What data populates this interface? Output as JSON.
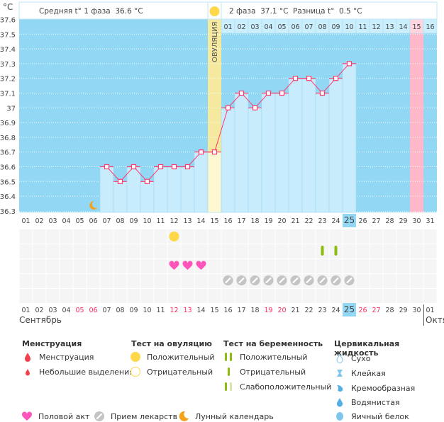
{
  "unit_label": "°C",
  "header": {
    "phase1": "Средняя t° 1 фаза  36.6 °C",
    "phase2": "2 фаза  37.1 °C",
    "diff": "Разница t°  0.5 °C",
    "ovulation_label": "ОВУЛЯЦИЯ"
  },
  "colors": {
    "chart_bg": "#92d8f4",
    "bar": "#c9ecfc",
    "ovulation": "#f5e9a0",
    "ovulation_bar": "#fdf8d2",
    "pink": "#ffb8c9",
    "line": "#ff3a6e",
    "today": "#92d8f4",
    "weekend": "#ff2a5a"
  },
  "chart_data": {
    "type": "line",
    "ylabel": "°C",
    "ylim": [
      36.3,
      37.6
    ],
    "y_ticks": [
      "37.6",
      "37.5",
      "37.4",
      "37.3",
      "37.2",
      "37.1",
      "37",
      "36.9",
      "36.8",
      "36.7",
      "36.6",
      "36.5",
      "36.4",
      "36.3"
    ],
    "days": [
      "01",
      "02",
      "03",
      "04",
      "05",
      "06",
      "07",
      "08",
      "09",
      "10",
      "11",
      "12",
      "13",
      "14",
      "15",
      "16",
      "17",
      "18",
      "19",
      "20",
      "21",
      "22",
      "23",
      "24",
      "25",
      "26",
      "27",
      "28",
      "29",
      "30",
      "31"
    ],
    "cycle_days": [
      "01",
      "02",
      "03",
      "04",
      "05",
      "06",
      "07",
      "08",
      "09",
      "10",
      "11",
      "12",
      "13",
      "14",
      "15",
      "16"
    ],
    "bottom_days": [
      "01",
      "02",
      "03",
      "04",
      "05",
      "06",
      "07",
      "08",
      "09",
      "10",
      "11",
      "12",
      "13",
      "14",
      "15",
      "16",
      "17",
      "18",
      "19",
      "20",
      "21",
      "22",
      "23",
      "24",
      "25",
      "26",
      "27",
      "28",
      "29",
      "30",
      "01"
    ],
    "weekend_bottom_days": [
      "05",
      "06",
      "12",
      "13",
      "19",
      "20",
      "26",
      "27"
    ],
    "temperatures": [
      {
        "day": "07",
        "t": 36.6
      },
      {
        "day": "08",
        "t": 36.5
      },
      {
        "day": "09",
        "t": 36.6
      },
      {
        "day": "10",
        "t": 36.5
      },
      {
        "day": "11",
        "t": 36.6
      },
      {
        "day": "12",
        "t": 36.6
      },
      {
        "day": "13",
        "t": 36.6
      },
      {
        "day": "14",
        "t": 36.7
      },
      {
        "day": "15",
        "t": 36.7
      },
      {
        "day": "16",
        "t": 37.0
      },
      {
        "day": "17",
        "t": 37.1
      },
      {
        "day": "18",
        "t": 37.0
      },
      {
        "day": "19",
        "t": 37.1
      },
      {
        "day": "20",
        "t": 37.1
      },
      {
        "day": "21",
        "t": 37.2
      },
      {
        "day": "22",
        "t": 37.2
      },
      {
        "day": "23",
        "t": 37.1
      },
      {
        "day": "24",
        "t": 37.2
      },
      {
        "day": "25",
        "t": 37.3
      }
    ],
    "ovulation_day": "15",
    "pink_day": "30",
    "today": "25",
    "moon_day": "06",
    "events": {
      "ovulation_test_positive": [
        "12"
      ],
      "pregnancy_test_negative": [
        "23",
        "24"
      ],
      "intercourse": [
        "12",
        "13",
        "14"
      ],
      "medication": [
        "16",
        "17",
        "18",
        "19",
        "20",
        "21",
        "22",
        "23",
        "24",
        "25"
      ]
    }
  },
  "months": {
    "current": "Сентябрь",
    "next": "Октябрь"
  },
  "legend": {
    "menstruation": {
      "title": "Менструация",
      "items": [
        "Менструация",
        "Небольшие выделения"
      ]
    },
    "ovulation_test": {
      "title": "Тест на овуляцию",
      "items": [
        "Положительный",
        "Отрицательный"
      ]
    },
    "pregnancy_test": {
      "title": "Тест на беременность",
      "items": [
        "Положительный",
        "Отрицательный",
        "Слабоположительный"
      ]
    },
    "cervical": {
      "title": "Цервикальная жидкость",
      "items": [
        "Сухо",
        "Клейкая",
        "Кремообразная",
        "Водянистая",
        "Яичный белок"
      ]
    },
    "other": [
      "Половой акт",
      "Прием лекарств",
      "Лунный календарь"
    ]
  }
}
